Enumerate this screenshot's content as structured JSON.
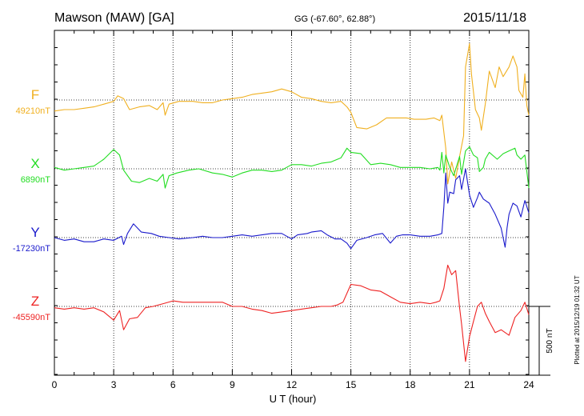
{
  "header": {
    "station": "Mawson (MAW)  [GA]",
    "coords": "GG (-67.60°,  62.88°)",
    "date": "2015/11/18"
  },
  "footer": {
    "plotted": "Plotted at 2015/12/19 01:32 UT",
    "scale_label": "500 nT"
  },
  "colors": {
    "F": "#f0b020",
    "X": "#22dd22",
    "Y": "#1a1acc",
    "Z": "#ee2222"
  },
  "chart_data": {
    "type": "line",
    "xlabel": "U T (hour)",
    "xlim": [
      0,
      24
    ],
    "x_ticks": [
      "0",
      "3",
      "6",
      "9",
      "12",
      "15",
      "18",
      "21",
      "24"
    ],
    "scale_nT": 500,
    "series": [
      {
        "key": "F",
        "name": "F",
        "baseline_label": "49210nT",
        "baseline_nT": 49210,
        "points": [
          [
            0,
            49130
          ],
          [
            0.5,
            49140
          ],
          [
            1,
            49140
          ],
          [
            1.5,
            49150
          ],
          [
            2,
            49160
          ],
          [
            2.5,
            49180
          ],
          [
            3,
            49200
          ],
          [
            3.2,
            49240
          ],
          [
            3.5,
            49220
          ],
          [
            3.8,
            49140
          ],
          [
            4.3,
            49160
          ],
          [
            4.8,
            49170
          ],
          [
            5.2,
            49140
          ],
          [
            5.5,
            49190
          ],
          [
            5.6,
            49100
          ],
          [
            5.8,
            49180
          ],
          [
            6.3,
            49200
          ],
          [
            7,
            49200
          ],
          [
            7.5,
            49190
          ],
          [
            8,
            49190
          ],
          [
            8.5,
            49210
          ],
          [
            9,
            49220
          ],
          [
            9.5,
            49230
          ],
          [
            10,
            49250
          ],
          [
            10.5,
            49260
          ],
          [
            11,
            49270
          ],
          [
            11.5,
            49290
          ],
          [
            12,
            49270
          ],
          [
            12.5,
            49230
          ],
          [
            13,
            49220
          ],
          [
            13.5,
            49200
          ],
          [
            14,
            49190
          ],
          [
            14.5,
            49200
          ],
          [
            14.8,
            49160
          ],
          [
            15,
            49120
          ],
          [
            15.3,
            49010
          ],
          [
            15.8,
            49000
          ],
          [
            16.3,
            49030
          ],
          [
            16.8,
            49080
          ],
          [
            17.2,
            49080
          ],
          [
            17.8,
            49080
          ],
          [
            18.2,
            49070
          ],
          [
            18.8,
            49070
          ],
          [
            19.2,
            49080
          ],
          [
            19.5,
            49060
          ],
          [
            19.6,
            49100
          ],
          [
            19.8,
            48860
          ],
          [
            19.9,
            48600
          ],
          [
            20.1,
            48760
          ],
          [
            20.3,
            48640
          ],
          [
            20.5,
            48800
          ],
          [
            20.7,
            48950
          ],
          [
            20.8,
            49450
          ],
          [
            21,
            49620
          ],
          [
            21.1,
            49400
          ],
          [
            21.3,
            49140
          ],
          [
            21.5,
            49080
          ],
          [
            21.6,
            48990
          ],
          [
            21.8,
            49180
          ],
          [
            22,
            49420
          ],
          [
            22.3,
            49300
          ],
          [
            22.5,
            49450
          ],
          [
            22.7,
            49380
          ],
          [
            23,
            49450
          ],
          [
            23.2,
            49530
          ],
          [
            23.4,
            49450
          ],
          [
            23.5,
            49280
          ],
          [
            23.7,
            49230
          ],
          [
            23.8,
            49400
          ],
          [
            23.9,
            49170
          ],
          [
            24,
            49100
          ]
        ]
      },
      {
        "key": "X",
        "name": "X",
        "baseline_label": "6890nT",
        "baseline_nT": 6890,
        "points": [
          [
            0,
            6900
          ],
          [
            0.5,
            6880
          ],
          [
            1,
            6890
          ],
          [
            1.5,
            6900
          ],
          [
            2,
            6910
          ],
          [
            2.5,
            6960
          ],
          [
            3,
            7030
          ],
          [
            3.3,
            6990
          ],
          [
            3.5,
            6880
          ],
          [
            3.9,
            6800
          ],
          [
            4.3,
            6790
          ],
          [
            4.8,
            6820
          ],
          [
            5.2,
            6800
          ],
          [
            5.5,
            6850
          ],
          [
            5.6,
            6750
          ],
          [
            5.8,
            6840
          ],
          [
            6.2,
            6860
          ],
          [
            6.8,
            6880
          ],
          [
            7.3,
            6890
          ],
          [
            8,
            6860
          ],
          [
            8.5,
            6850
          ],
          [
            9,
            6830
          ],
          [
            9.5,
            6860
          ],
          [
            10,
            6880
          ],
          [
            10.5,
            6880
          ],
          [
            11,
            6870
          ],
          [
            11.5,
            6880
          ],
          [
            12,
            6920
          ],
          [
            12.5,
            6920
          ],
          [
            13,
            6910
          ],
          [
            13.5,
            6930
          ],
          [
            14,
            6940
          ],
          [
            14.5,
            6970
          ],
          [
            14.8,
            7040
          ],
          [
            15,
            7010
          ],
          [
            15.5,
            7000
          ],
          [
            16,
            6920
          ],
          [
            16.5,
            6930
          ],
          [
            17,
            6920
          ],
          [
            17.5,
            6900
          ],
          [
            18,
            6900
          ],
          [
            18.5,
            6900
          ],
          [
            19,
            6890
          ],
          [
            19.4,
            6900
          ],
          [
            19.5,
            6880
          ],
          [
            19.6,
            7010
          ],
          [
            19.7,
            6860
          ],
          [
            19.8,
            6990
          ],
          [
            20,
            6900
          ],
          [
            20.2,
            6840
          ],
          [
            20.5,
            6980
          ],
          [
            20.6,
            6850
          ],
          [
            20.8,
            7020
          ],
          [
            21,
            7050
          ],
          [
            21.2,
            6990
          ],
          [
            21.4,
            6970
          ],
          [
            21.5,
            6870
          ],
          [
            21.7,
            6900
          ],
          [
            21.8,
            6960
          ],
          [
            22,
            7010
          ],
          [
            22.4,
            6960
          ],
          [
            22.7,
            7000
          ],
          [
            23,
            7020
          ],
          [
            23.3,
            7040
          ],
          [
            23.4,
            6990
          ],
          [
            23.6,
            6960
          ],
          [
            23.8,
            6990
          ],
          [
            24,
            6750
          ]
        ]
      },
      {
        "key": "Y",
        "name": "Y",
        "baseline_label": "-17230nT",
        "baseline_nT": -17230,
        "points": [
          [
            0,
            -17230
          ],
          [
            0.5,
            -17250
          ],
          [
            1,
            -17240
          ],
          [
            1.5,
            -17260
          ],
          [
            2,
            -17260
          ],
          [
            2.5,
            -17240
          ],
          [
            3,
            -17250
          ],
          [
            3.4,
            -17220
          ],
          [
            3.5,
            -17280
          ],
          [
            3.7,
            -17200
          ],
          [
            4,
            -17130
          ],
          [
            4.4,
            -17190
          ],
          [
            4.9,
            -17200
          ],
          [
            5.3,
            -17220
          ],
          [
            5.8,
            -17230
          ],
          [
            6.3,
            -17240
          ],
          [
            7,
            -17230
          ],
          [
            7.5,
            -17220
          ],
          [
            8,
            -17230
          ],
          [
            8.5,
            -17230
          ],
          [
            9,
            -17220
          ],
          [
            9.5,
            -17210
          ],
          [
            10,
            -17220
          ],
          [
            10.5,
            -17210
          ],
          [
            11,
            -17200
          ],
          [
            11.5,
            -17200
          ],
          [
            12,
            -17240
          ],
          [
            12.3,
            -17210
          ],
          [
            12.8,
            -17200
          ],
          [
            13,
            -17190
          ],
          [
            13.5,
            -17180
          ],
          [
            13.8,
            -17210
          ],
          [
            14.2,
            -17240
          ],
          [
            14.5,
            -17240
          ],
          [
            14.8,
            -17270
          ],
          [
            15,
            -17310
          ],
          [
            15.3,
            -17250
          ],
          [
            15.8,
            -17230
          ],
          [
            16.2,
            -17210
          ],
          [
            16.6,
            -17200
          ],
          [
            17,
            -17270
          ],
          [
            17.3,
            -17220
          ],
          [
            17.6,
            -17210
          ],
          [
            18,
            -17210
          ],
          [
            18.5,
            -17220
          ],
          [
            19,
            -17220
          ],
          [
            19.4,
            -17210
          ],
          [
            19.6,
            -17200
          ],
          [
            19.7,
            -17010
          ],
          [
            19.8,
            -16760
          ],
          [
            19.9,
            -16980
          ],
          [
            20,
            -16900
          ],
          [
            20.2,
            -16910
          ],
          [
            20.3,
            -16810
          ],
          [
            20.5,
            -16780
          ],
          [
            20.6,
            -16880
          ],
          [
            20.8,
            -16730
          ],
          [
            21,
            -16920
          ],
          [
            21.2,
            -17010
          ],
          [
            21.4,
            -16940
          ],
          [
            21.5,
            -16900
          ],
          [
            21.7,
            -16950
          ],
          [
            22,
            -16980
          ],
          [
            22.3,
            -17060
          ],
          [
            22.6,
            -17160
          ],
          [
            22.8,
            -17300
          ],
          [
            22.9,
            -17160
          ],
          [
            23,
            -17060
          ],
          [
            23.2,
            -16980
          ],
          [
            23.4,
            -17000
          ],
          [
            23.6,
            -17080
          ],
          [
            23.8,
            -16960
          ],
          [
            24,
            -17050
          ]
        ]
      },
      {
        "key": "Z",
        "name": "Z",
        "baseline_label": "-45590nT",
        "baseline_nT": -45590,
        "points": [
          [
            0,
            -45600
          ],
          [
            0.5,
            -45610
          ],
          [
            1,
            -45600
          ],
          [
            1.5,
            -45610
          ],
          [
            2,
            -45600
          ],
          [
            2.5,
            -45630
          ],
          [
            3,
            -45690
          ],
          [
            3.3,
            -45620
          ],
          [
            3.5,
            -45760
          ],
          [
            3.8,
            -45680
          ],
          [
            4.2,
            -45670
          ],
          [
            4.6,
            -45600
          ],
          [
            5,
            -45590
          ],
          [
            5.5,
            -45570
          ],
          [
            6,
            -45550
          ],
          [
            6.5,
            -45560
          ],
          [
            7,
            -45560
          ],
          [
            7.5,
            -45560
          ],
          [
            8,
            -45560
          ],
          [
            8.5,
            -45560
          ],
          [
            9,
            -45590
          ],
          [
            9.5,
            -45590
          ],
          [
            10,
            -45610
          ],
          [
            10.5,
            -45620
          ],
          [
            11,
            -45640
          ],
          [
            11.5,
            -45630
          ],
          [
            12,
            -45620
          ],
          [
            12.5,
            -45610
          ],
          [
            13,
            -45600
          ],
          [
            13.5,
            -45590
          ],
          [
            14,
            -45590
          ],
          [
            14.3,
            -45580
          ],
          [
            14.6,
            -45560
          ],
          [
            15,
            -45430
          ],
          [
            15.5,
            -45440
          ],
          [
            16,
            -45470
          ],
          [
            16.5,
            -45480
          ],
          [
            17,
            -45520
          ],
          [
            17.5,
            -45560
          ],
          [
            18,
            -45570
          ],
          [
            18.5,
            -45560
          ],
          [
            19,
            -45570
          ],
          [
            19.3,
            -45560
          ],
          [
            19.5,
            -45550
          ],
          [
            19.7,
            -45460
          ],
          [
            19.9,
            -45290
          ],
          [
            20.1,
            -45360
          ],
          [
            20.3,
            -45330
          ],
          [
            20.5,
            -45600
          ],
          [
            20.6,
            -45720
          ],
          [
            20.8,
            -45990
          ],
          [
            21,
            -45810
          ],
          [
            21.2,
            -45700
          ],
          [
            21.4,
            -45590
          ],
          [
            21.6,
            -45560
          ],
          [
            21.8,
            -45640
          ],
          [
            22,
            -45700
          ],
          [
            22.3,
            -45780
          ],
          [
            22.6,
            -45760
          ],
          [
            23,
            -45800
          ],
          [
            23.3,
            -45670
          ],
          [
            23.6,
            -45620
          ],
          [
            23.8,
            -45560
          ],
          [
            24,
            -45650
          ]
        ]
      }
    ]
  }
}
